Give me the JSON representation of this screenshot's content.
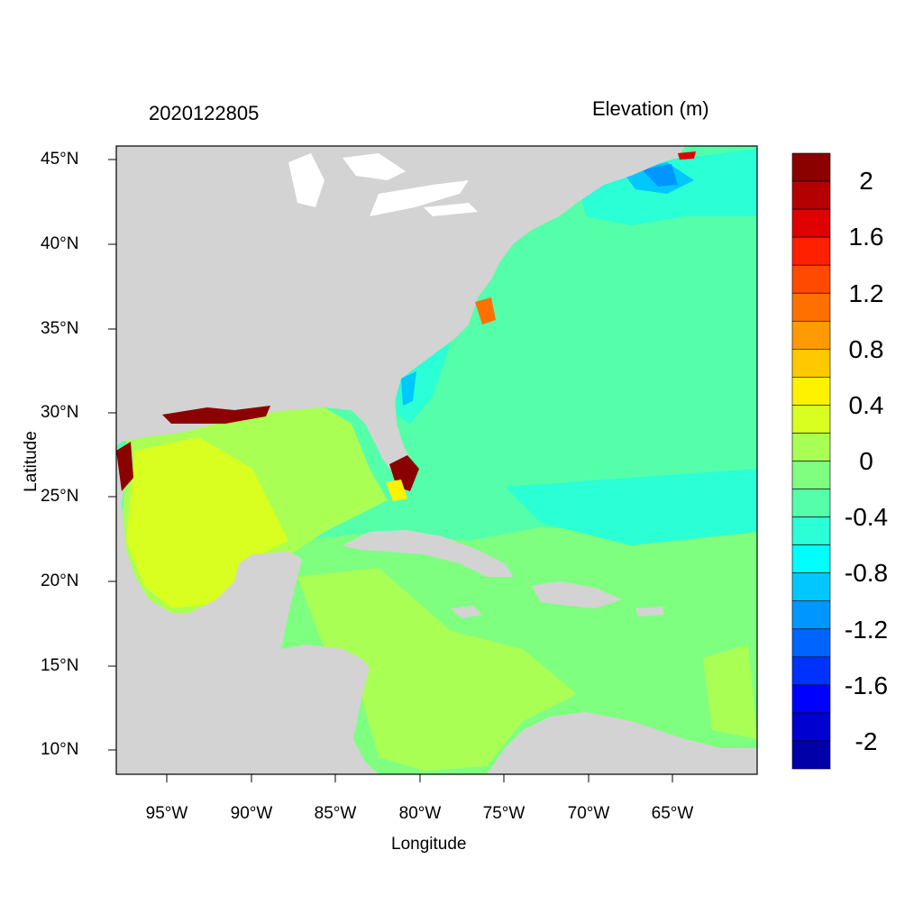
{
  "map": {
    "timestamp": "2020122805",
    "variable_title": "Elevation (m)",
    "xlabel": "Longitude",
    "ylabel": "Latitude",
    "lon_range": [
      -98,
      -60
    ],
    "lat_range": [
      8.5,
      46
    ],
    "x_ticks": [
      "95°W",
      "90°W",
      "85°W",
      "80°W",
      "75°W",
      "70°W",
      "65°W"
    ],
    "y_ticks": [
      "45°N",
      "40°N",
      "35°N",
      "30°N",
      "25°N",
      "20°N",
      "15°N",
      "10°N"
    ],
    "land_color": "#d3d3d3",
    "ocean_base_color": "#55ffaa"
  },
  "colorbar": {
    "labels": [
      "2",
      "1.6",
      "1.2",
      "0.8",
      "0.4",
      "0",
      "-0.4",
      "-0.8",
      "-1.2",
      "-1.6",
      "-2"
    ],
    "colors": [
      "#8b0000",
      "#b40000",
      "#e00000",
      "#ff2000",
      "#ff4a00",
      "#ff7000",
      "#ff9a00",
      "#ffc800",
      "#fff200",
      "#d9ff20",
      "#aaff55",
      "#7fff80",
      "#55ffaa",
      "#2affd5",
      "#00ffff",
      "#00c8ff",
      "#0096ff",
      "#0064ff",
      "#0032ff",
      "#0000ff",
      "#0000d0",
      "#0000a8"
    ]
  }
}
